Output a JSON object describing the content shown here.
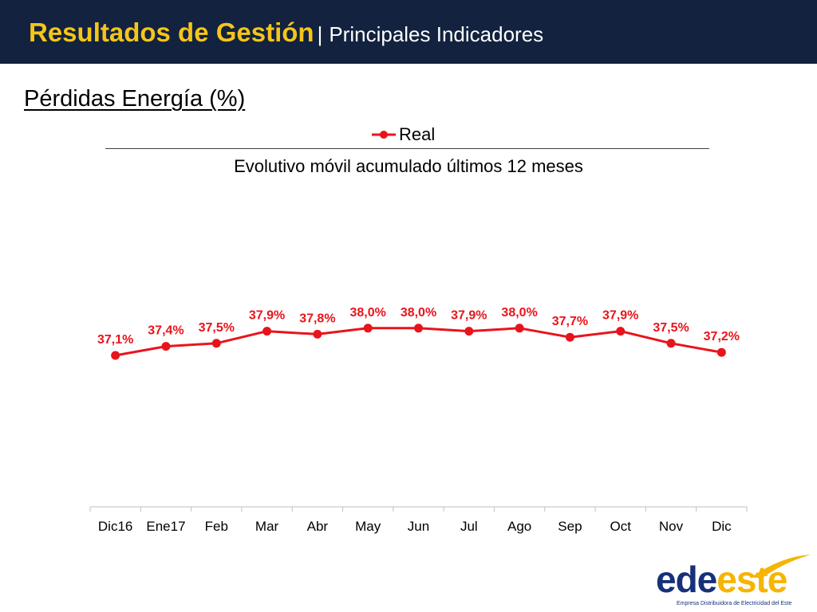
{
  "header": {
    "title": "Resultados de Gestión",
    "separator": "|",
    "subtitle": "Principales Indicadores"
  },
  "section_title": "Pérdidas Energía (%)",
  "chart_data": {
    "type": "line",
    "title": "Evolutivo móvil  acumulado últimos 12 meses",
    "categories": [
      "Dic16",
      "Ene17",
      "Feb",
      "Mar",
      "Abr",
      "May",
      "Jun",
      "Jul",
      "Ago",
      "Sep",
      "Oct",
      "Nov",
      "Dic"
    ],
    "series": [
      {
        "name": "Real",
        "values": [
          37.1,
          37.4,
          37.5,
          37.9,
          37.8,
          38.0,
          38.0,
          37.9,
          38.0,
          37.7,
          37.9,
          37.5,
          37.2
        ],
        "labels": [
          "37,1%",
          "37,4%",
          "37,5%",
          "37,9%",
          "37,8%",
          "38,0%",
          "38,0%",
          "37,9%",
          "38,0%",
          "37,7%",
          "37,9%",
          "37,5%",
          "37,2%"
        ],
        "color": "#e8141c"
      }
    ],
    "legend": "top-center",
    "grid": false,
    "y_axis_visible": false
  },
  "logo": {
    "text_dark": "ede",
    "text_accent": "este",
    "tagline": "Empresa Distribuidora de Electricidad del Este"
  },
  "colors": {
    "header_bg": "#12223f",
    "title_accent": "#f5c518",
    "series": "#e8141c",
    "logo_dark": "#17307a",
    "logo_accent": "#f5b500"
  }
}
